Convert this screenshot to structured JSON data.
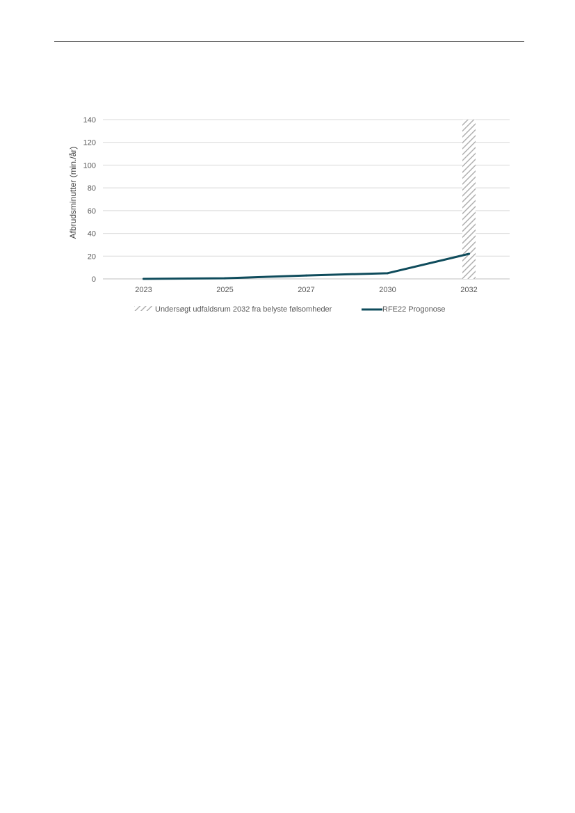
{
  "chart_data": {
    "type": "line",
    "title": "",
    "xlabel": "",
    "ylabel": "Afbrudsminutter (min./år)",
    "categories": [
      "2023",
      "2025",
      "2027",
      "2030",
      "2032"
    ],
    "ylim": [
      0,
      140
    ],
    "yticks": [
      0,
      20,
      40,
      60,
      80,
      100,
      120,
      140
    ],
    "grid": true,
    "legend_position": "bottom",
    "series": [
      {
        "name": "RFE22 Progonose",
        "values": [
          0,
          0.5,
          3,
          5,
          22
        ],
        "color": "#0f4c5c"
      }
    ],
    "range_band": {
      "name": "Undersøgt udfaldsrum 2032 fra belyste følsomheder",
      "category": "2032",
      "range": [
        0,
        140
      ],
      "color": "#a6a6a6"
    }
  }
}
